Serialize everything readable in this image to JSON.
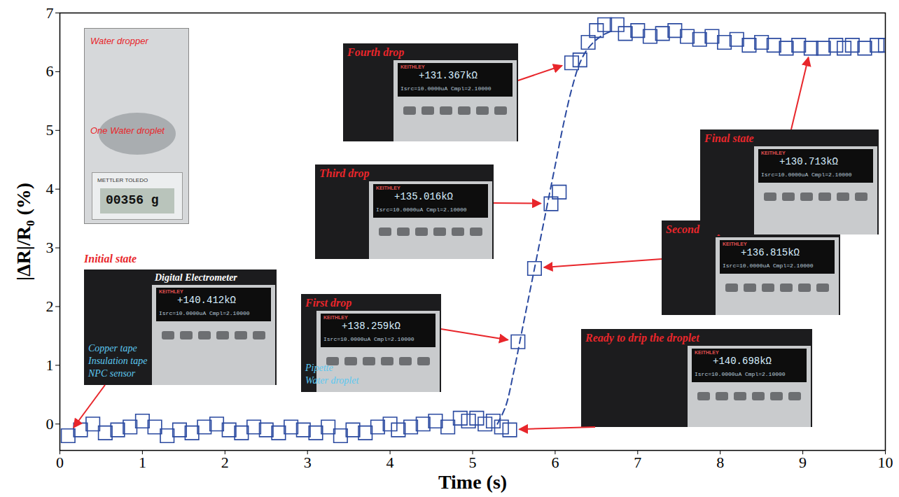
{
  "chart_data": {
    "type": "scatter",
    "xlabel": "Time (s)",
    "ylabel": "|ΔR|/R₀ (%)",
    "xlim": [
      0,
      10
    ],
    "xticks": [
      0,
      1,
      2,
      3,
      4,
      5,
      6,
      7,
      8,
      9,
      10
    ],
    "ylim": [
      -0.45,
      7
    ],
    "yticks": [
      0,
      1,
      2,
      3,
      4,
      5,
      6,
      7
    ],
    "grid": false,
    "series": [
      {
        "type": "scatter",
        "marker": "square",
        "color": "#2b4aa0",
        "x": [
          0.1,
          0.25,
          0.4,
          0.55,
          0.7,
          0.85,
          1.0,
          1.15,
          1.3,
          1.45,
          1.6,
          1.75,
          1.9,
          2.05,
          2.2,
          2.35,
          2.5,
          2.65,
          2.8,
          2.95,
          3.1,
          3.25,
          3.4,
          3.55,
          3.7,
          3.85,
          4.0,
          4.1,
          4.25,
          4.4,
          4.55,
          4.7,
          4.85,
          4.95,
          5.05,
          5.15,
          5.25,
          5.35,
          5.45,
          5.55,
          5.75,
          5.95,
          6.05,
          6.2,
          6.3,
          6.4,
          6.5,
          6.6,
          6.75,
          6.85,
          7.0,
          7.15,
          7.3,
          7.45,
          7.6,
          7.75,
          7.9,
          8.05,
          8.2,
          8.35,
          8.5,
          8.65,
          8.8,
          8.95,
          9.1,
          9.25,
          9.4,
          9.5,
          9.6,
          9.75,
          9.9,
          10.0
        ],
        "values": [
          -0.2,
          -0.1,
          0,
          -0.15,
          -0.1,
          -0.05,
          0.05,
          -0.05,
          -0.2,
          -0.1,
          -0.15,
          -0.05,
          0,
          -0.1,
          -0.15,
          -0.05,
          -0.1,
          -0.15,
          -0.05,
          -0.1,
          -0.15,
          -0.05,
          -0.2,
          -0.1,
          -0.15,
          -0.05,
          0,
          -0.1,
          -0.05,
          0,
          0.05,
          -0.05,
          0.1,
          0.05,
          0.1,
          0,
          0.05,
          -0.05,
          -0.1,
          1.4,
          2.65,
          3.75,
          3.95,
          6.15,
          6.2,
          6.5,
          6.7,
          6.8,
          6.8,
          6.65,
          6.7,
          6.6,
          6.65,
          6.7,
          6.6,
          6.55,
          6.6,
          6.5,
          6.55,
          6.45,
          6.5,
          6.45,
          6.4,
          6.45,
          6.4,
          6.4,
          6.45,
          6.4,
          6.45,
          6.4,
          6.45,
          6.45
        ]
      },
      {
        "type": "line",
        "line_style": "dashed",
        "color": "#2b4aa0",
        "x": [
          5.3,
          5.4,
          5.5,
          5.6,
          5.7,
          5.8,
          5.9,
          6.0,
          6.1,
          6.2,
          6.3,
          6.4,
          6.55,
          6.7
        ],
        "values": [
          0,
          0.3,
          0.9,
          1.6,
          2.3,
          3.0,
          3.7,
          4.4,
          5.1,
          5.7,
          6.15,
          6.4,
          6.6,
          6.7
        ]
      }
    ]
  },
  "meter": {
    "brand": "KEITHLEY",
    "settings": "Isrc=10.0000uA  Cmpl=2.10000"
  },
  "balance": {
    "texts": [
      "Water dropper",
      "One Water droplet"
    ],
    "display": "00356 g",
    "brand": "METTLER TOLEDO"
  },
  "insets": [
    {
      "label": "Initial state",
      "reading": "+140.412kΩ",
      "device": "Digital Electrometer",
      "parts": [
        "Copper tape",
        "Insulation tape",
        "NPC sensor"
      ]
    },
    {
      "label": "First drop",
      "reading": "+138.259kΩ",
      "parts": [
        "Pipette",
        "Water droplet"
      ]
    },
    {
      "label": "Second drop",
      "reading": "+136.815kΩ"
    },
    {
      "label": "Third drop",
      "reading": "+135.016kΩ"
    },
    {
      "label": "Fourth drop",
      "reading": "+131.367kΩ"
    },
    {
      "label": "Ready to drip the droplet",
      "reading": "+140.698kΩ"
    },
    {
      "label": "Final state",
      "reading": "+130.713kΩ"
    }
  ]
}
